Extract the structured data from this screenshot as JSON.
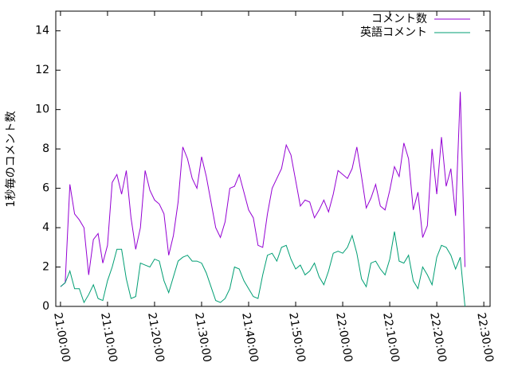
{
  "chart_data": {
    "type": "line",
    "ylabel": "1秒毎のコメント数",
    "x": [
      "21:00:00",
      "21:01:00",
      "21:02:00",
      "21:03:00",
      "21:04:00",
      "21:05:00",
      "21:06:00",
      "21:07:00",
      "21:08:00",
      "21:09:00",
      "21:10:00",
      "21:11:00",
      "21:12:00",
      "21:13:00",
      "21:14:00",
      "21:15:00",
      "21:16:00",
      "21:17:00",
      "21:18:00",
      "21:19:00",
      "21:20:00",
      "21:21:00",
      "21:22:00",
      "21:23:00",
      "21:24:00",
      "21:25:00",
      "21:26:00",
      "21:27:00",
      "21:28:00",
      "21:29:00",
      "21:30:00",
      "21:31:00",
      "21:32:00",
      "21:33:00",
      "21:34:00",
      "21:35:00",
      "21:36:00",
      "21:37:00",
      "21:38:00",
      "21:39:00",
      "21:40:00",
      "21:41:00",
      "21:42:00",
      "21:43:00",
      "21:44:00",
      "21:45:00",
      "21:46:00",
      "21:47:00",
      "21:48:00",
      "21:49:00",
      "21:50:00",
      "21:51:00",
      "21:52:00",
      "21:53:00",
      "21:54:00",
      "21:55:00",
      "21:56:00",
      "21:57:00",
      "21:58:00",
      "21:59:00",
      "22:00:00",
      "22:01:00",
      "22:02:00",
      "22:03:00",
      "22:04:00",
      "22:05:00",
      "22:06:00",
      "22:07:00",
      "22:08:00",
      "22:09:00",
      "22:10:00",
      "22:11:00",
      "22:12:00",
      "22:13:00",
      "22:14:00",
      "22:15:00",
      "22:16:00",
      "22:17:00",
      "22:18:00",
      "22:19:00",
      "22:20:00",
      "22:21:00",
      "22:22:00",
      "22:23:00",
      "22:24:00",
      "22:25:00",
      "22:26:00"
    ],
    "series": [
      {
        "name": "コメント数",
        "color": "#9400d3",
        "values": [
          1.0,
          1.2,
          6.2,
          4.7,
          4.4,
          4.0,
          1.6,
          3.4,
          3.7,
          2.2,
          3.1,
          6.3,
          6.7,
          5.7,
          6.9,
          4.5,
          2.9,
          4.0,
          6.9,
          5.9,
          5.4,
          5.2,
          4.7,
          2.6,
          3.6,
          5.3,
          8.1,
          7.5,
          6.5,
          6.0,
          7.6,
          6.6,
          5.3,
          4.0,
          3.5,
          4.3,
          6.0,
          6.1,
          6.7,
          5.8,
          4.9,
          4.5,
          3.1,
          3.0,
          4.7,
          6.0,
          6.5,
          7.0,
          8.2,
          7.7,
          6.4,
          5.1,
          5.4,
          5.3,
          4.5,
          4.9,
          5.4,
          4.8,
          5.7,
          6.9,
          6.7,
          6.5,
          7.0,
          8.1,
          6.6,
          5.0,
          5.5,
          6.2,
          5.1,
          4.9,
          5.9,
          7.1,
          6.6,
          8.3,
          7.5,
          4.9,
          5.8,
          3.5,
          4.1,
          8.0,
          5.7,
          8.6,
          6.1,
          7.0,
          4.6,
          10.9,
          2.0
        ]
      },
      {
        "name": "英語コメント",
        "color": "#009e73",
        "values": [
          1.0,
          1.2,
          1.8,
          0.9,
          0.9,
          0.2,
          0.6,
          1.1,
          0.4,
          0.3,
          1.3,
          2.0,
          2.9,
          2.9,
          1.4,
          0.4,
          0.5,
          2.2,
          2.1,
          2.0,
          2.4,
          2.3,
          1.3,
          0.7,
          1.5,
          2.3,
          2.5,
          2.6,
          2.3,
          2.3,
          2.2,
          1.7,
          1.0,
          0.3,
          0.2,
          0.4,
          0.9,
          2.0,
          1.9,
          1.3,
          0.9,
          0.5,
          0.4,
          1.6,
          2.6,
          2.7,
          2.3,
          3.0,
          3.1,
          2.4,
          1.9,
          2.1,
          1.6,
          1.8,
          2.2,
          1.5,
          1.1,
          1.8,
          2.7,
          2.8,
          2.7,
          3.0,
          3.6,
          2.7,
          1.4,
          1.0,
          2.2,
          2.3,
          1.9,
          1.6,
          2.4,
          3.8,
          2.3,
          2.2,
          2.6,
          1.3,
          0.9,
          2.0,
          1.6,
          1.1,
          2.5,
          3.1,
          3.0,
          2.6,
          1.9,
          2.5,
          0.0
        ]
      }
    ],
    "xlim": [
      "20:59:00",
      "22:31:20"
    ],
    "xticks": [
      "21:00:00",
      "21:10:00",
      "21:20:00",
      "21:30:00",
      "21:40:00",
      "21:50:00",
      "22:00:00",
      "22:10:00",
      "22:20:00",
      "22:30:00"
    ],
    "ylim": [
      0,
      15
    ],
    "yticks": [
      0,
      2,
      4,
      6,
      8,
      10,
      12,
      14
    ],
    "legend": "top-right"
  }
}
